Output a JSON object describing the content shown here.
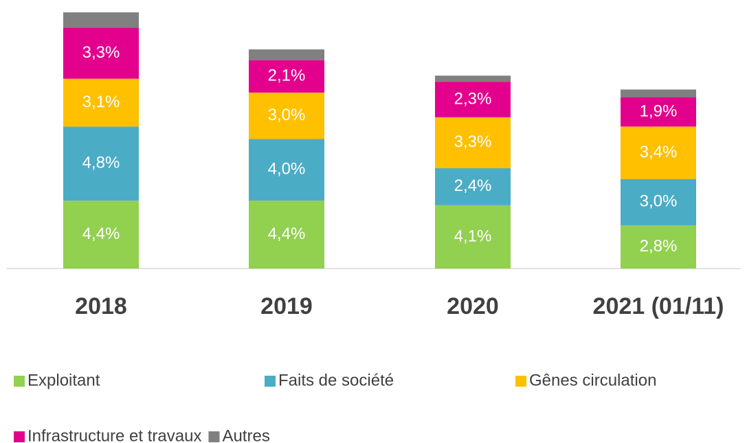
{
  "chart_data": {
    "type": "stacked_bar",
    "categories": [
      "2018",
      "2019",
      "2020",
      "2021 (01/11)"
    ],
    "series": [
      {
        "name": "Exploitant",
        "color": "#92d050",
        "values": [
          4.4,
          4.4,
          4.1,
          2.8
        ],
        "value_labels": [
          "4,4%",
          "4,4%",
          "4,1%",
          "2,8%"
        ]
      },
      {
        "name": "Faits de société",
        "color": "#4bacc6",
        "values": [
          4.8,
          4.0,
          2.4,
          3.0
        ],
        "value_labels": [
          "4,8%",
          "4,0%",
          "2,4%",
          "3,0%"
        ]
      },
      {
        "name": "Gênes circulation",
        "color": "#ffc000",
        "values": [
          3.1,
          3.0,
          3.3,
          3.4
        ],
        "value_labels": [
          "3,1%",
          "3,0%",
          "3,3%",
          "3,4%"
        ]
      },
      {
        "name": "Infrastructure et travaux",
        "color": "#e3008c",
        "values": [
          3.3,
          2.1,
          2.3,
          1.9
        ],
        "value_labels": [
          "3,3%",
          "2,1%",
          "2,3%",
          "1,9%"
        ]
      },
      {
        "name": "Autres",
        "color": "#808080",
        "values": [
          1.0,
          0.7,
          0.4,
          0.5
        ]
      }
    ],
    "ylim": [
      0,
      17.4
    ],
    "legend": "bottom"
  }
}
